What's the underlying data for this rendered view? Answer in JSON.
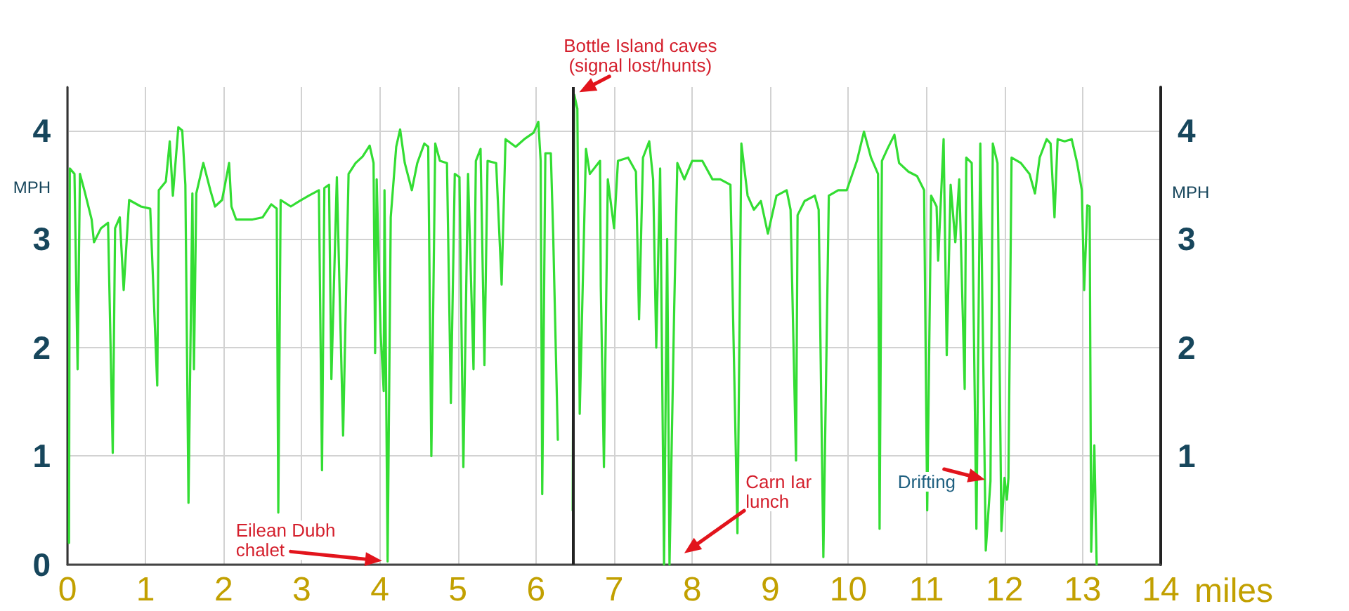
{
  "chart_data": {
    "type": "line",
    "xlabel": "miles",
    "ylabel": "MPH",
    "y2label": "MPH",
    "xlim": [
      0,
      14
    ],
    "xticks": [
      0,
      1,
      2,
      3,
      4,
      5,
      6,
      7,
      8,
      9,
      10,
      11,
      12,
      13,
      14
    ],
    "ylim": [
      0,
      4.4
    ],
    "yticks": [
      0,
      1,
      2,
      3,
      4
    ],
    "y2lim": [
      0,
      4.4
    ],
    "y2ticks": [
      1,
      2,
      3,
      4
    ],
    "grid": true,
    "line_style": "solid",
    "series": [
      {
        "color": "#33dd33",
        "x": [
          0.02,
          0.03,
          0.09,
          0.13,
          0.16,
          0.22,
          0.31,
          0.34,
          0.43,
          0.52,
          0.58,
          0.61,
          0.67,
          0.72,
          0.79,
          0.94,
          1.06,
          1.15,
          1.17,
          1.26,
          1.31,
          1.35,
          1.42,
          1.47,
          1.51,
          1.55,
          1.6,
          1.62,
          1.65,
          1.74,
          1.83,
          1.89,
          1.98,
          2.07,
          2.1,
          2.16,
          2.37,
          2.5,
          2.61,
          2.68,
          2.7,
          2.73,
          2.86,
          2.97,
          3.09,
          3.22,
          3.26,
          3.29,
          3.35,
          3.38,
          3.45,
          3.53,
          3.6,
          3.69,
          3.78,
          3.87,
          3.92,
          3.94,
          3.96,
          4.01,
          4.05,
          4.06,
          4.1,
          4.14,
          4.21,
          4.26,
          4.32,
          4.41,
          4.48,
          4.57,
          4.62,
          4.66,
          4.71,
          4.77,
          4.86,
          4.91,
          4.96,
          5.02,
          5.07,
          5.13,
          5.2,
          5.23,
          5.29,
          5.34,
          5.38,
          5.49,
          5.56,
          5.61,
          5.74,
          5.85,
          5.97,
          6.03,
          6.06,
          6.08,
          6.12,
          6.19,
          6.22,
          6.28
        ],
        "values": [
          0.2,
          3.65,
          3.6,
          1.8,
          3.6,
          3.44,
          3.18,
          2.97,
          3.1,
          3.15,
          1.03,
          3.1,
          3.2,
          2.53,
          3.36,
          3.3,
          3.28,
          1.65,
          3.45,
          3.53,
          3.9,
          3.4,
          4.03,
          4.0,
          3.5,
          0.57,
          3.42,
          1.8,
          3.42,
          3.7,
          3.45,
          3.3,
          3.36,
          3.7,
          3.3,
          3.18,
          3.18,
          3.2,
          3.32,
          3.28,
          0.48,
          3.36,
          3.3,
          3.35,
          3.4,
          3.45,
          0.87,
          3.47,
          3.5,
          1.71,
          3.57,
          1.19,
          3.6,
          3.7,
          3.76,
          3.86,
          3.7,
          1.95,
          3.55,
          2.14,
          1.6,
          3.45,
          0.03,
          3.2,
          3.85,
          4.01,
          3.7,
          3.45,
          3.7,
          3.88,
          3.85,
          1.0,
          3.88,
          3.72,
          3.7,
          1.49,
          3.6,
          3.57,
          0.9,
          3.6,
          1.8,
          3.72,
          3.83,
          1.84,
          3.72,
          3.7,
          2.58,
          3.92,
          3.85,
          3.92,
          3.98,
          4.08,
          3.72,
          0.65,
          3.79,
          3.79,
          3.05,
          1.15
        ]
      },
      {
        "color": "#33dd33",
        "x": [
          6.47,
          6.49,
          6.53,
          6.56,
          6.64,
          6.69,
          6.82,
          6.83,
          6.87,
          6.92,
          7.0,
          7.05,
          7.18,
          7.28,
          7.32,
          7.37,
          7.45,
          7.5,
          7.54,
          7.59,
          7.64,
          7.68,
          7.71,
          7.77,
          7.81,
          7.9,
          8.0,
          8.13,
          8.26,
          8.36,
          8.49,
          8.58,
          8.63,
          8.71,
          8.79,
          8.88,
          8.97,
          9.08,
          9.21,
          9.26,
          9.33,
          9.35,
          9.44,
          9.57,
          9.62,
          9.68,
          9.75,
          9.87,
          9.98,
          10.11,
          10.2,
          10.29,
          10.38,
          10.4,
          10.43,
          10.5,
          10.59,
          10.65,
          10.77,
          10.88,
          10.97,
          11.01,
          11.06,
          11.13,
          11.15,
          11.22,
          11.26,
          11.31,
          11.37,
          11.42,
          11.49,
          11.51,
          11.58,
          11.64,
          11.69,
          11.76,
          11.82,
          11.85,
          11.91,
          11.96,
          12.0,
          12.03,
          12.05,
          12.09,
          12.21,
          12.32,
          12.39,
          12.45,
          12.54,
          12.59,
          12.64,
          12.68,
          12.77,
          12.86,
          12.93,
          12.99,
          13.02,
          13.06,
          13.09,
          13.11,
          13.15,
          13.18
        ],
        "values": [
          0.5,
          4.33,
          4.2,
          1.39,
          3.83,
          3.6,
          3.72,
          2.56,
          0.9,
          3.55,
          3.1,
          3.72,
          3.75,
          3.62,
          2.26,
          3.75,
          3.9,
          3.55,
          2.0,
          3.65,
          0,
          3.0,
          0,
          2.36,
          3.7,
          3.55,
          3.72,
          3.72,
          3.55,
          3.55,
          3.5,
          0.29,
          3.88,
          3.4,
          3.27,
          3.35,
          3.05,
          3.4,
          3.45,
          3.27,
          0.96,
          3.22,
          3.35,
          3.4,
          3.27,
          0.07,
          3.4,
          3.45,
          3.45,
          3.72,
          3.99,
          3.75,
          3.6,
          0.33,
          3.72,
          3.83,
          3.96,
          3.7,
          3.62,
          3.58,
          3.45,
          0.5,
          3.4,
          3.3,
          2.8,
          3.92,
          1.93,
          3.5,
          2.97,
          3.55,
          1.62,
          3.75,
          3.7,
          0.33,
          3.88,
          0.13,
          0.77,
          3.88,
          3.7,
          0.31,
          0.8,
          0.6,
          0.8,
          3.75,
          3.7,
          3.6,
          3.42,
          3.75,
          3.92,
          3.88,
          3.2,
          3.92,
          3.9,
          3.92,
          3.7,
          3.45,
          2.53,
          3.31,
          3.3,
          0.12,
          1.1,
          0
        ]
      }
    ],
    "ref_lines": [
      {
        "axis": "x",
        "value": 6.47,
        "color": "#222222"
      }
    ],
    "annotations": [
      {
        "text": "Bottle Island caves\n(signal lost/hunts)",
        "x": 6.49,
        "y": 4.33
      },
      {
        "text": "Eilean Dubh\nchalet",
        "x": 4.1,
        "y": 0.03
      },
      "Carn Iar\nlunch",
      {
        "text": "Drifting",
        "x": 11.82,
        "y": 0.77
      }
    ]
  }
}
